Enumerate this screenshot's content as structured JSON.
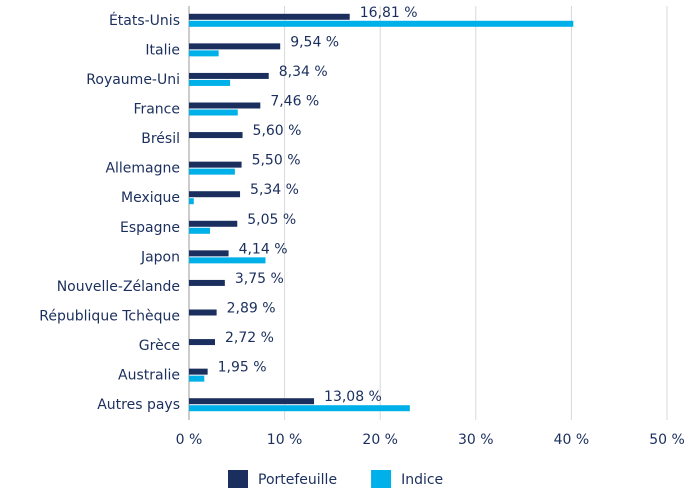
{
  "chart_data": {
    "type": "hbar",
    "categories": [
      "États-Unis",
      "Italie",
      "Royaume-Uni",
      "France",
      "Brésil",
      "Allemagne",
      "Mexique",
      "Espagne",
      "Japon",
      "Nouvelle-Zélande",
      "République Tchèque",
      "Grèce",
      "Australie",
      "Autres pays"
    ],
    "series": [
      {
        "name": "Portefeuille",
        "color": "#1b2f5e",
        "values": [
          16.81,
          9.54,
          8.34,
          7.46,
          5.6,
          5.5,
          5.34,
          5.05,
          4.14,
          3.75,
          2.89,
          2.72,
          1.95,
          13.08
        ],
        "value_labels": [
          "16,81 %",
          "9,54 %",
          "8,34 %",
          "7,46 %",
          "5,60 %",
          "5,50 %",
          "5,34 %",
          "5,05 %",
          "4,14 %",
          "3,75 %",
          "2,89 %",
          "2,72 %",
          "1,95 %",
          "13,08 %"
        ]
      },
      {
        "name": "Indice",
        "color": "#00b0e8",
        "values": [
          40.2,
          3.1,
          4.3,
          5.1,
          0,
          4.8,
          0.5,
          2.2,
          8.0,
          0,
          0,
          0,
          1.6,
          23.1
        ]
      }
    ],
    "xlim": [
      0,
      50
    ],
    "xticks": [
      {
        "value": 0,
        "label": "0 %"
      },
      {
        "value": 10,
        "label": "10 %"
      },
      {
        "value": 20,
        "label": "20 %"
      },
      {
        "value": 30,
        "label": "30 %"
      },
      {
        "value": 40,
        "label": "40 %"
      },
      {
        "value": 50,
        "label": "50 %"
      }
    ],
    "grid": true,
    "legend": "bottom"
  }
}
